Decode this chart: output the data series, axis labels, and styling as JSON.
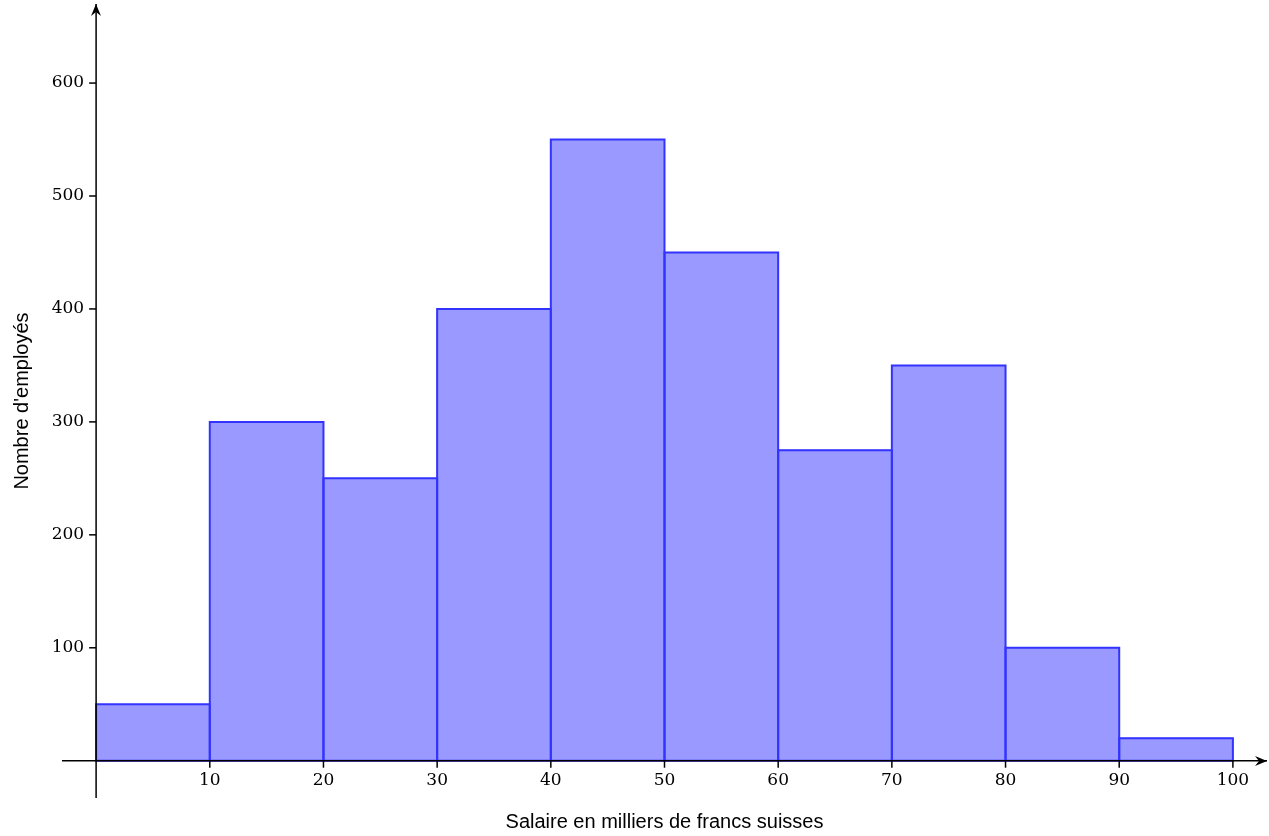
{
  "chart_data": {
    "type": "histogram",
    "xlabel": "Salaire en milliers de francs suisses",
    "ylabel": "Nombre d'employés",
    "bins": [
      0,
      10,
      20,
      30,
      40,
      50,
      60,
      70,
      80,
      90,
      100
    ],
    "values": [
      50,
      300,
      250,
      400,
      550,
      450,
      275,
      350,
      100,
      20
    ],
    "color": "#9999ff",
    "xlim": [
      -3,
      103
    ],
    "ylim": [
      -33,
      670
    ],
    "xticks": [
      10,
      20,
      30,
      40,
      50,
      60,
      70,
      80,
      90,
      100
    ],
    "yticks": [
      100,
      200,
      300,
      400,
      500,
      600
    ],
    "grid": false,
    "legend": false
  }
}
